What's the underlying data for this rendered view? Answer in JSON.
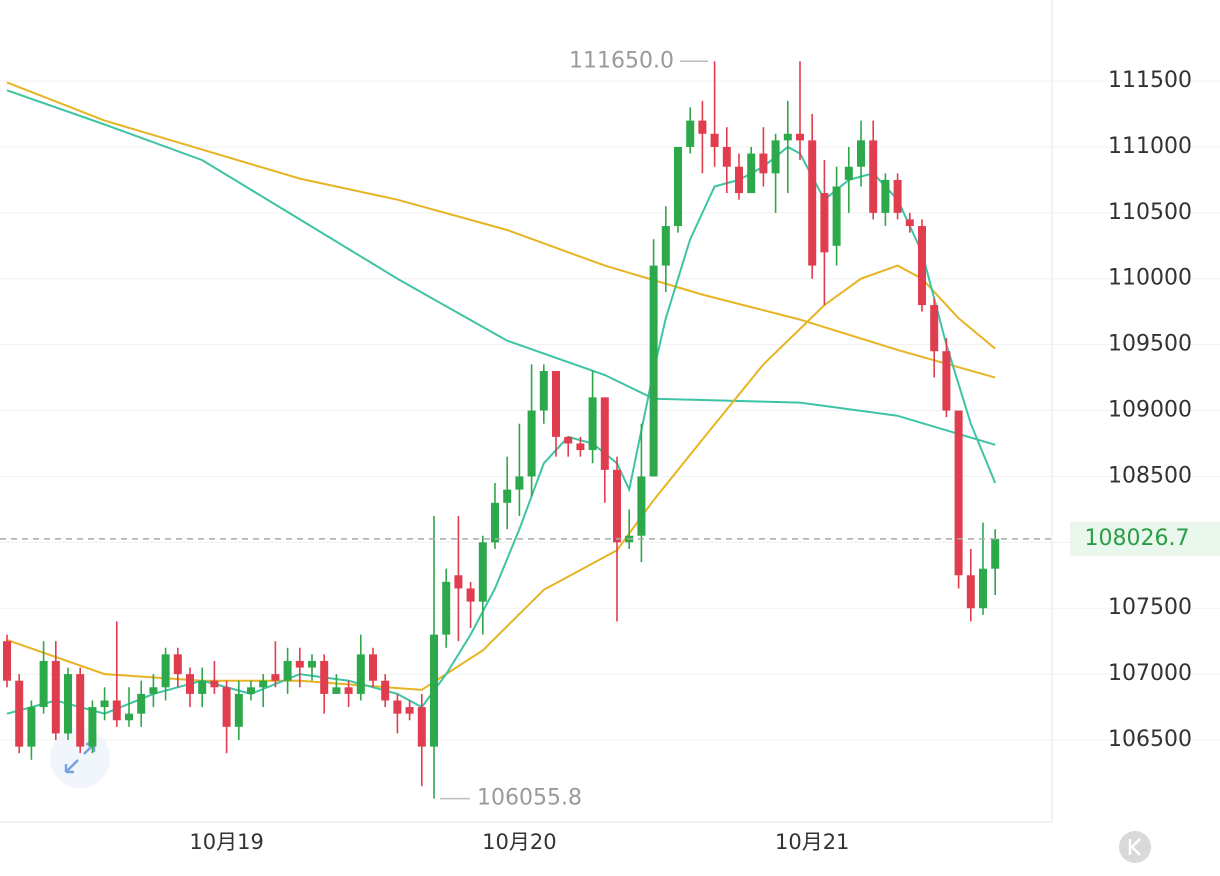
{
  "chart_data": {
    "type": "candlestick",
    "categories": [
      null,
      null,
      null,
      null,
      null,
      null,
      null,
      null,
      null,
      null,
      null,
      null,
      null,
      null,
      null,
      null,
      null,
      null,
      "10月19",
      null,
      null,
      null,
      null,
      null,
      null,
      null,
      null,
      null,
      null,
      null,
      null,
      null,
      null,
      null,
      null,
      null,
      null,
      null,
      null,
      null,
      null,
      null,
      "10月20",
      null,
      null,
      null,
      null,
      null,
      null,
      null,
      null,
      null,
      null,
      null,
      null,
      null,
      null,
      null,
      null,
      null,
      null,
      null,
      null,
      null,
      null,
      null,
      "10月21",
      null,
      null,
      null,
      null,
      null,
      null,
      null,
      null,
      null,
      null,
      null,
      null,
      null,
      null,
      null
    ],
    "open": [
      107250,
      106950,
      106450,
      106750,
      107100,
      106550,
      107000,
      106450,
      106750,
      106800,
      106650,
      106700,
      106850,
      106900,
      107150,
      107000,
      106850,
      106950,
      106900,
      106600,
      106850,
      106900,
      107000,
      106950,
      107100,
      107050,
      107100,
      106850,
      106900,
      106850,
      107150,
      106950,
      106800,
      106750,
      106750,
      106450,
      107300,
      107750,
      107650,
      107550,
      108000,
      108300,
      108400,
      108500,
      109000,
      109300,
      108800,
      108750,
      108700,
      109100,
      108550,
      108000,
      108050,
      108500,
      110100,
      110400,
      111000,
      111200,
      111100,
      111000,
      110850,
      110650,
      110950,
      110800,
      111050,
      111100,
      111050,
      110650,
      110250,
      110750,
      110850,
      111050,
      110500,
      110750,
      110450,
      110400,
      109800,
      109450,
      109000,
      107750,
      107500,
      107800
    ],
    "high": [
      107300,
      107000,
      106800,
      107250,
      107250,
      107050,
      107050,
      106800,
      106900,
      107400,
      106900,
      106950,
      107000,
      107200,
      107200,
      107050,
      107050,
      107100,
      106950,
      106950,
      106950,
      107000,
      107250,
      107200,
      107200,
      107150,
      107150,
      107000,
      106950,
      107300,
      107200,
      107000,
      106850,
      106800,
      106850,
      108200,
      107800,
      108200,
      107700,
      108050,
      108450,
      108650,
      108900,
      109350,
      109350,
      109300,
      108800,
      108800,
      109300,
      109100,
      108650,
      108250,
      108900,
      110300,
      110550,
      111000,
      111300,
      111350,
      111650,
      111150,
      110950,
      111000,
      111150,
      111100,
      111350,
      111650,
      111250,
      110900,
      110850,
      111000,
      111200,
      111200,
      110800,
      110800,
      110500,
      110450,
      109850,
      109550,
      109000,
      107950,
      108150,
      108100
    ],
    "low": [
      106900,
      106400,
      106350,
      106700,
      106500,
      106500,
      106400,
      106400,
      106650,
      106600,
      106600,
      106600,
      106750,
      106800,
      106900,
      106750,
      106750,
      106850,
      106400,
      106500,
      106800,
      106750,
      106900,
      106850,
      106900,
      106950,
      106700,
      106850,
      106750,
      106800,
      106900,
      106750,
      106550,
      106650,
      106150,
      106055.8,
      107200,
      107250,
      107350,
      107300,
      107950,
      108100,
      108200,
      108350,
      108900,
      108650,
      108650,
      108650,
      108600,
      108300,
      107400,
      107950,
      107850,
      108500,
      109900,
      110350,
      110950,
      110800,
      110850,
      110650,
      110600,
      110650,
      110700,
      110500,
      110650,
      110900,
      110000,
      109800,
      110100,
      110500,
      110700,
      110450,
      110400,
      110450,
      110350,
      109750,
      109250,
      108950,
      107650,
      107400,
      107450,
      107600
    ],
    "close": [
      106950,
      106450,
      106750,
      107100,
      106550,
      107000,
      106450,
      106750,
      106800,
      106650,
      106700,
      106850,
      106900,
      107150,
      107000,
      106850,
      106950,
      106900,
      106600,
      106850,
      106900,
      106950,
      106950,
      107100,
      107050,
      107100,
      106850,
      106900,
      106850,
      107150,
      106950,
      106800,
      106700,
      106700,
      106450,
      107300,
      107700,
      107650,
      107550,
      108000,
      108300,
      108400,
      108500,
      109000,
      109300,
      108800,
      108750,
      108700,
      109100,
      108550,
      108000,
      108050,
      108500,
      110100,
      110400,
      111000,
      111200,
      111100,
      111000,
      110850,
      110650,
      110950,
      110800,
      111050,
      111100,
      111050,
      110100,
      110200,
      110700,
      110850,
      111050,
      110500,
      110750,
      110500,
      110400,
      109800,
      109450,
      109000,
      107750,
      107500,
      107800,
      108026.7
    ],
    "up_color": "#2da84a",
    "down_color": "#e03d4e",
    "lines": [
      {
        "color": "#e6b422",
        "x": [
          0,
          8,
          16,
          24,
          32,
          41,
          49,
          57,
          65,
          73,
          81
        ],
        "values": [
          111490,
          111200,
          110980,
          110760,
          110600,
          110370,
          110100,
          109880,
          109690,
          109460,
          109250
        ]
      },
      {
        "color": "#3cc4a4",
        "x": [
          0,
          8,
          16,
          24,
          32,
          41,
          49,
          53,
          57,
          65,
          73,
          81
        ],
        "values": [
          111430,
          111170,
          110900,
          110450,
          110000,
          109530,
          109270,
          109090,
          109080,
          109060,
          108960,
          108740
        ]
      },
      {
        "color": "#e6b422",
        "x": [
          0,
          8,
          16,
          24,
          34,
          39,
          44,
          50,
          53,
          57,
          62,
          67,
          70,
          73,
          75,
          78,
          81
        ],
        "values": [
          107260,
          107000,
          106950,
          106950,
          106880,
          107180,
          107640,
          107940,
          108320,
          108780,
          109350,
          109800,
          110000,
          110100,
          110000,
          109700,
          109470
        ]
      },
      {
        "color": "#3cc4a4",
        "x": [
          0,
          4,
          8,
          12,
          16,
          20,
          24,
          28,
          32,
          34,
          36,
          38,
          40,
          42,
          44,
          46,
          48,
          50,
          51,
          52,
          53,
          54,
          56,
          58,
          60,
          62,
          64,
          65,
          67,
          69,
          71,
          73,
          75,
          77,
          79,
          81
        ],
        "values": [
          106700,
          106800,
          106700,
          106850,
          106950,
          106850,
          107000,
          106950,
          106850,
          106750,
          107000,
          107300,
          107650,
          108100,
          108600,
          108800,
          108750,
          108600,
          108400,
          108850,
          109300,
          109700,
          110300,
          110700,
          110750,
          110850,
          111000,
          110950,
          110600,
          110750,
          110800,
          110600,
          110200,
          109500,
          108900,
          108450
        ]
      }
    ],
    "last_price": 108026.7,
    "high_label": {
      "value": 111650,
      "label": "111650.0"
    },
    "low_label": {
      "value": 106055.8,
      "label": "106055.8"
    },
    "ylim": [
      105878,
      112115
    ],
    "yticks": [
      106500,
      107000,
      107500,
      108000,
      108500,
      109000,
      109500,
      110000,
      110500,
      111000,
      111500
    ],
    "grid": true
  }
}
